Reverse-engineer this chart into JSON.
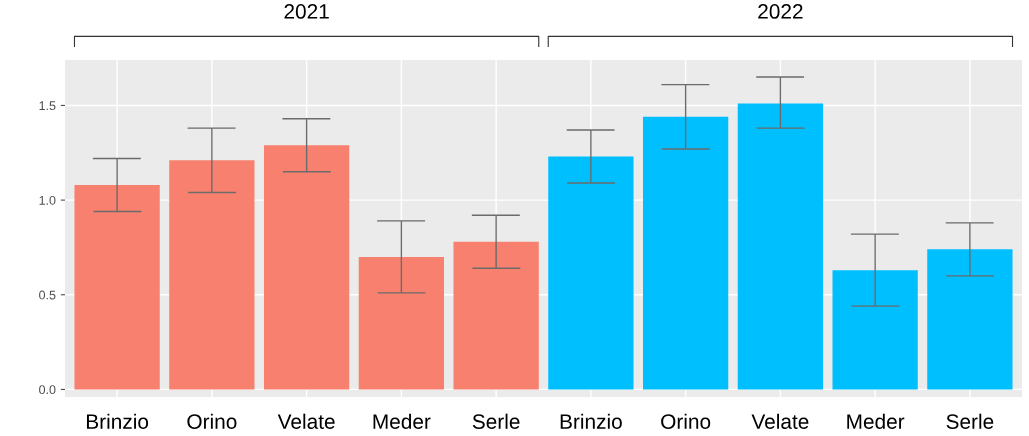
{
  "chart_data": {
    "type": "bar",
    "categories": [
      "Brinzio",
      "Orino",
      "Velate",
      "Meder",
      "Serle",
      "Brinzio",
      "Orino",
      "Velate",
      "Meder",
      "Serle"
    ],
    "values": [
      1.08,
      1.21,
      1.29,
      0.7,
      0.78,
      1.23,
      1.44,
      1.51,
      0.63,
      0.74
    ],
    "errors": [
      [
        0.94,
        1.22
      ],
      [
        1.04,
        1.38
      ],
      [
        1.15,
        1.43
      ],
      [
        0.51,
        0.89
      ],
      [
        0.64,
        0.92
      ],
      [
        1.09,
        1.37
      ],
      [
        1.27,
        1.61
      ],
      [
        1.38,
        1.65
      ],
      [
        0.44,
        0.82
      ],
      [
        0.6,
        0.88
      ]
    ],
    "colors": [
      "#f8806f",
      "#f8806f",
      "#f8806f",
      "#f8806f",
      "#f8806f",
      "#00bfff",
      "#00bfff",
      "#00bfff",
      "#00bfff",
      "#00bfff"
    ],
    "annotations": [
      "2021",
      "2022"
    ],
    "ylim": [
      -0.04,
      1.74
    ],
    "yticks": [
      {
        "value": 0,
        "label": "0.0"
      },
      {
        "value": 0.5,
        "label": "0.5"
      },
      {
        "value": 1,
        "label": "1.0"
      },
      {
        "value": 1.5,
        "label": "1.5"
      }
    ],
    "grid": true
  }
}
